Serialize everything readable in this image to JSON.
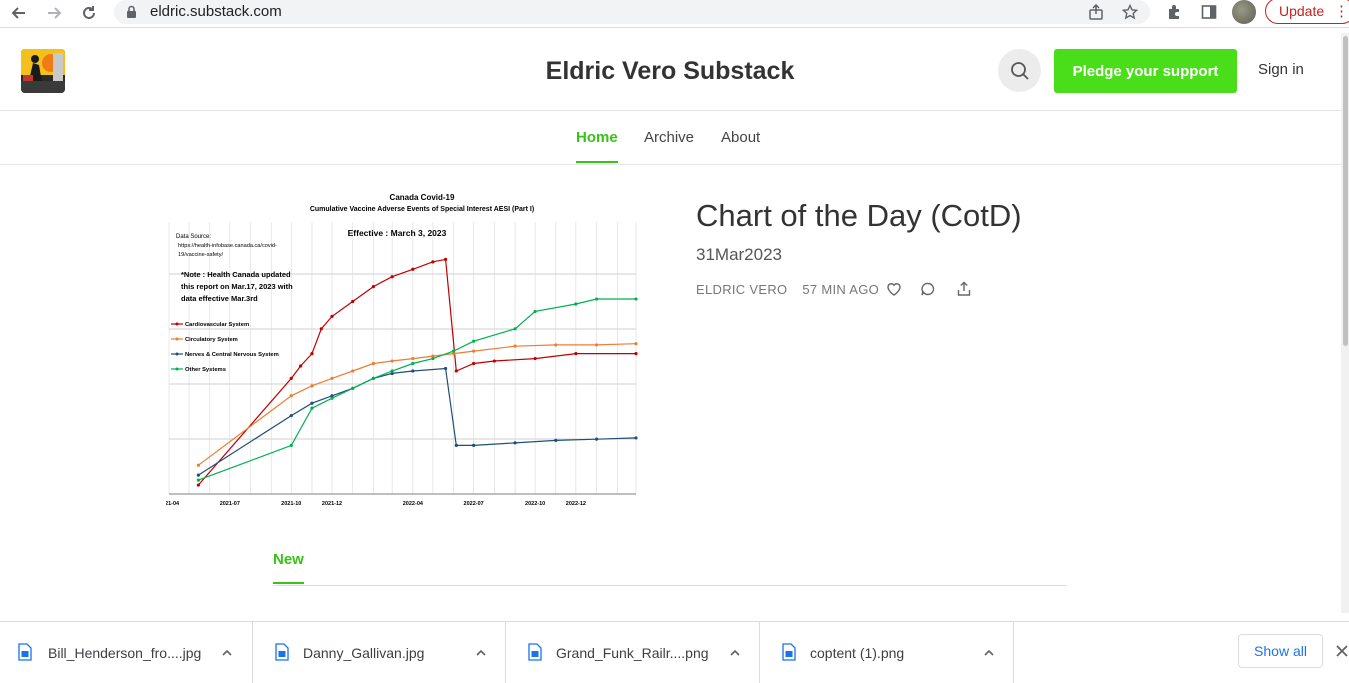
{
  "browser": {
    "url": "eldric.substack.com",
    "update_label": "Update"
  },
  "header": {
    "site_title": "Eldric Vero Substack",
    "pledge_label": "Pledge your support",
    "signin_label": "Sign in"
  },
  "nav": {
    "tabs": [
      {
        "label": "Home",
        "active": true
      },
      {
        "label": "Archive",
        "active": false
      },
      {
        "label": "About",
        "active": false
      }
    ]
  },
  "post": {
    "title": "Chart of the Day (CotD)",
    "subtitle": "31Mar2023",
    "author": "ELDRIC VERO",
    "time_ago": "57 MIN AGO"
  },
  "section": {
    "tab_label": "New"
  },
  "downloads": {
    "items": [
      {
        "name": "Bill_Henderson_fro....jpg"
      },
      {
        "name": "Danny_Gallivan.jpg"
      },
      {
        "name": "Grand_Funk_Railr....png"
      },
      {
        "name": "coptent (1).png"
      }
    ],
    "show_all_label": "Show all"
  },
  "colors": {
    "accent": "#38c316",
    "pledge": "#4ade1a",
    "update": "#c5221f"
  },
  "chart_data": {
    "type": "line",
    "title": "Canada Covid-19",
    "subtitle": "Cumulative Vaccine Adverse Events of Special Interest AESI (Part I)",
    "effective": "Effective : March 3, 2023",
    "source_label": "Data Source:",
    "source_url": "https://health-infobase.canada.ca/covid-19/vaccine-safety/",
    "note": "*Note : Health Canada updated this report on Mar.17, 2023 with data effective Mar.3rd",
    "x_ticks": [
      "2021-04",
      "2021-07",
      "2021-10",
      "2021-12",
      "2022-04",
      "2022-07",
      "2022-10",
      "2022-12"
    ],
    "x_range": [
      "2021-04",
      "2023-03"
    ],
    "grid": true,
    "legend_position": "left",
    "series": [
      {
        "name": "Cardiovascular System",
        "color": "#c00000",
        "points": [
          [
            "2021-05-15",
            0.02
          ],
          [
            "2021-10-01",
            0.45
          ],
          [
            "2021-10-15",
            0.5
          ],
          [
            "2021-11-01",
            0.55
          ],
          [
            "2021-11-15",
            0.65
          ],
          [
            "2021-12-01",
            0.7
          ],
          [
            "2022-01-01",
            0.76
          ],
          [
            "2022-02-01",
            0.82
          ],
          [
            "2022-03-01",
            0.86
          ],
          [
            "2022-04-01",
            0.89
          ],
          [
            "2022-05-01",
            0.92
          ],
          [
            "2022-05-20",
            0.93
          ],
          [
            "2022-06-05",
            0.48
          ],
          [
            "2022-07-01",
            0.51
          ],
          [
            "2022-08-01",
            0.52
          ],
          [
            "2022-10-01",
            0.53
          ],
          [
            "2022-12-01",
            0.55
          ],
          [
            "2023-03-01",
            0.55
          ]
        ]
      },
      {
        "name": "Circulatory System",
        "color": "#ed7d31",
        "points": [
          [
            "2021-05-15",
            0.1
          ],
          [
            "2021-10-01",
            0.38
          ],
          [
            "2021-11-01",
            0.42
          ],
          [
            "2021-12-01",
            0.45
          ],
          [
            "2022-01-01",
            0.48
          ],
          [
            "2022-02-01",
            0.51
          ],
          [
            "2022-03-01",
            0.52
          ],
          [
            "2022-04-01",
            0.53
          ],
          [
            "2022-05-01",
            0.54
          ],
          [
            "2022-06-01",
            0.55
          ],
          [
            "2022-07-01",
            0.56
          ],
          [
            "2022-09-01",
            0.58
          ],
          [
            "2022-11-01",
            0.585
          ],
          [
            "2023-01-01",
            0.585
          ],
          [
            "2023-03-01",
            0.59
          ]
        ]
      },
      {
        "name": "Nerves & Central Nervous System",
        "color": "#1f4e79",
        "points": [
          [
            "2021-05-15",
            0.06
          ],
          [
            "2021-10-01",
            0.3
          ],
          [
            "2021-11-01",
            0.35
          ],
          [
            "2021-12-01",
            0.38
          ],
          [
            "2022-01-01",
            0.41
          ],
          [
            "2022-02-01",
            0.45
          ],
          [
            "2022-03-01",
            0.47
          ],
          [
            "2022-04-01",
            0.48
          ],
          [
            "2022-05-20",
            0.49
          ],
          [
            "2022-06-05",
            0.18
          ],
          [
            "2022-07-01",
            0.18
          ],
          [
            "2022-09-01",
            0.19
          ],
          [
            "2022-11-01",
            0.2
          ],
          [
            "2023-01-01",
            0.205
          ],
          [
            "2023-03-01",
            0.21
          ]
        ]
      },
      {
        "name": "Other Systems",
        "color": "#00b050",
        "points": [
          [
            "2021-05-15",
            0.04
          ],
          [
            "2021-10-01",
            0.18
          ],
          [
            "2021-11-01",
            0.33
          ],
          [
            "2021-12-01",
            0.37
          ],
          [
            "2022-01-01",
            0.41
          ],
          [
            "2022-02-01",
            0.45
          ],
          [
            "2022-03-01",
            0.48
          ],
          [
            "2022-04-01",
            0.51
          ],
          [
            "2022-05-01",
            0.53
          ],
          [
            "2022-06-01",
            0.56
          ],
          [
            "2022-07-01",
            0.6
          ],
          [
            "2022-09-01",
            0.65
          ],
          [
            "2022-10-01",
            0.72
          ],
          [
            "2022-12-01",
            0.75
          ],
          [
            "2023-01-01",
            0.77
          ],
          [
            "2023-03-01",
            0.77
          ]
        ]
      }
    ]
  }
}
